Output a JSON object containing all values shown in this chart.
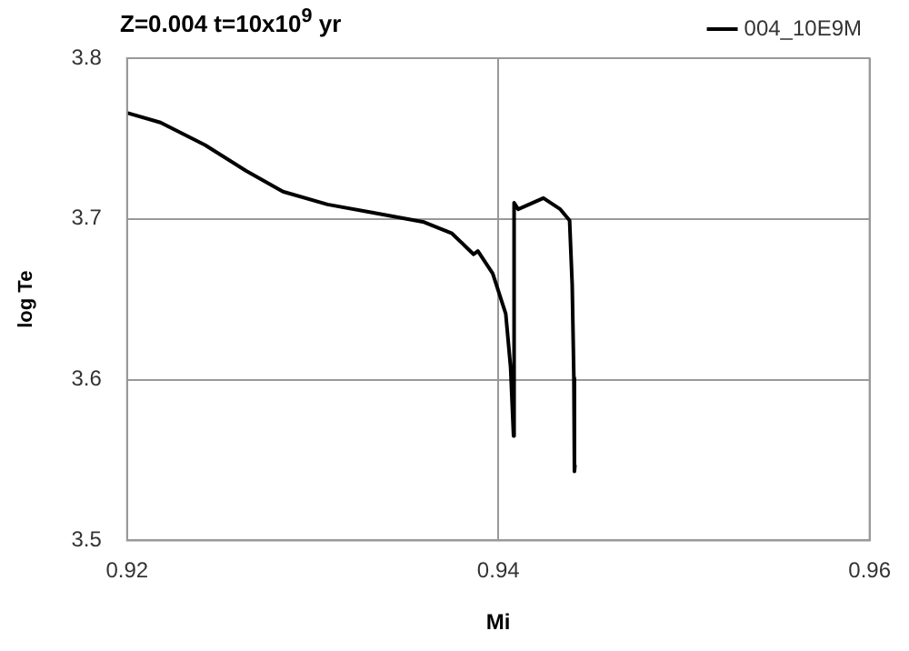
{
  "chart_data": {
    "type": "line",
    "title": "Z=0.004 t=10x10$^{9}$ yr",
    "xlabel": "Mi",
    "ylabel": "log Te",
    "xlim": [
      0.92,
      0.96
    ],
    "xticks": [
      0.92,
      0.94,
      0.96
    ],
    "ylim": [
      3.5,
      3.8
    ],
    "yticks": [
      3.5,
      3.6,
      3.7,
      3.8
    ],
    "grid": true,
    "legend": "top right",
    "marker": "none",
    "line_style": "solid",
    "series": [
      {
        "name": "004_10E9M",
        "color": "#000000",
        "x": [
          0.92,
          0.9218,
          0.9242,
          0.9264,
          0.9284,
          0.9308,
          0.9332,
          0.936,
          0.9375,
          0.93867,
          0.9389,
          0.9397,
          0.9404,
          0.94066,
          0.94082,
          0.94085,
          0.94107,
          0.94243,
          0.94334,
          0.94384,
          0.94398,
          0.94407,
          0.9441,
          0.94413
        ],
        "values": [
          3.766,
          3.76,
          3.746,
          3.73,
          3.717,
          3.709,
          3.704,
          3.698,
          3.691,
          3.678,
          3.68,
          3.666,
          3.641,
          3.608,
          3.565,
          3.71,
          3.706,
          3.713,
          3.706,
          3.699,
          3.659,
          3.601,
          3.543,
          3.547
        ]
      }
    ]
  }
}
